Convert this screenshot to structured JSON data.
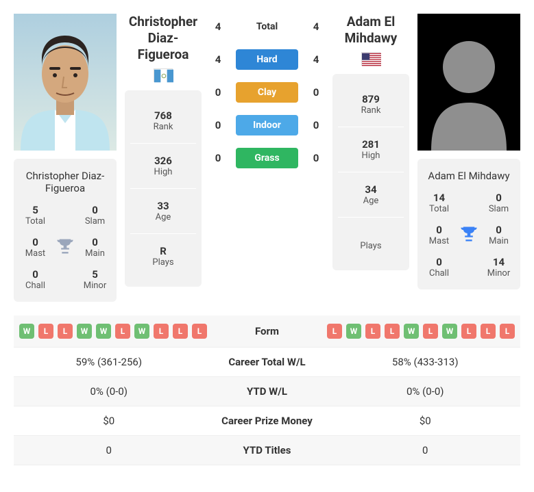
{
  "colors": {
    "card_bg": "#f2f2f2",
    "trophy_left": "#9aa6bb",
    "trophy_right": "#3b82f6",
    "win": "#6fbf73",
    "loss": "#f0776c",
    "surfaces": {
      "total": "transparent",
      "hard": "#2e86d6",
      "clay": "#e7a22e",
      "indoor": "#4da9e8",
      "grass": "#2fb661"
    }
  },
  "player1": {
    "name": "Christopher Diaz-Figueroa",
    "flag": {
      "type": "guatemala",
      "bg": "#ffffff",
      "stripe": "#4997d0"
    },
    "photo": "real",
    "titles": {
      "Total": 5,
      "Slam": 0,
      "Mast": 0,
      "Main": 0,
      "Chall": 0,
      "Minor": 5
    },
    "stats": {
      "rank": 768,
      "high": 326,
      "age": 33,
      "plays": "R"
    },
    "form": [
      "W",
      "L",
      "L",
      "W",
      "W",
      "L",
      "W",
      "L",
      "L",
      "L"
    ]
  },
  "player2": {
    "name": "Adam El Mihdawy",
    "flag": {
      "type": "usa"
    },
    "photo": "placeholder",
    "titles": {
      "Total": 14,
      "Slam": 0,
      "Mast": 0,
      "Main": 0,
      "Chall": 0,
      "Minor": 14
    },
    "stats": {
      "rank": 879,
      "high": 281,
      "age": 34,
      "plays": ""
    },
    "form": [
      "L",
      "W",
      "L",
      "L",
      "W",
      "L",
      "W",
      "L",
      "L",
      "L"
    ]
  },
  "h2h": {
    "surfaces": [
      {
        "label": "Total",
        "p1": 4,
        "p2": 4,
        "key": "total"
      },
      {
        "label": "Hard",
        "p1": 4,
        "p2": 4,
        "key": "hard"
      },
      {
        "label": "Clay",
        "p1": 0,
        "p2": 0,
        "key": "clay"
      },
      {
        "label": "Indoor",
        "p1": 0,
        "p2": 0,
        "key": "indoor"
      },
      {
        "label": "Grass",
        "p1": 0,
        "p2": 0,
        "key": "grass"
      }
    ]
  },
  "labels": {
    "rank": "Rank",
    "high": "High",
    "age": "Age",
    "plays": "Plays",
    "form": "Form",
    "career_wl": "Career Total W/L",
    "ytd_wl": "YTD W/L",
    "career_prize": "Career Prize Money",
    "ytd_titles": "YTD Titles"
  },
  "compare": {
    "career_wl": {
      "p1": "59% (361-256)",
      "p2": "58% (433-313)"
    },
    "ytd_wl": {
      "p1": "0% (0-0)",
      "p2": "0% (0-0)"
    },
    "career_prize": {
      "p1": "$0",
      "p2": "$0"
    },
    "ytd_titles": {
      "p1": "0",
      "p2": "0"
    }
  }
}
